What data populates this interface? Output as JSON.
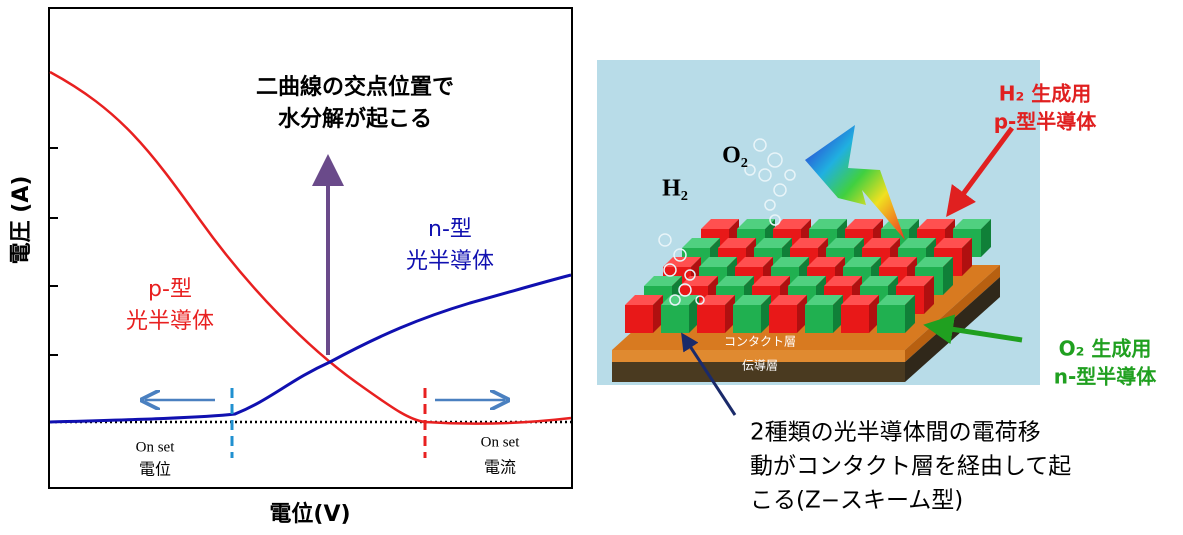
{
  "left_panel": {
    "y_axis_label": "電圧 (A)",
    "x_axis_label": "電位(V)",
    "annotation": [
      "二曲線の交点位置で",
      "水分解が起こる"
    ],
    "n_type_label": [
      "n-型",
      "光半導体"
    ],
    "p_type_label": [
      "p-型",
      "光半導体"
    ],
    "onset_potential": [
      "On set",
      "電位"
    ],
    "onset_current": [
      "On set",
      "電流"
    ]
  },
  "right_panel": {
    "h2_label": "H₂",
    "o2_label": "O₂",
    "p_type_label": [
      "H₂ 生成用",
      "p-型半導体"
    ],
    "n_type_label": [
      "O₂ 生成用",
      "n-型半導体"
    ],
    "contact_layer": "コンタクト層",
    "conduction_layer": "伝導層",
    "description": [
      "2種類の光半導体間の電荷移",
      "動がコンタクト層を経由して起",
      "こる(Z−スキーム型)"
    ]
  }
}
